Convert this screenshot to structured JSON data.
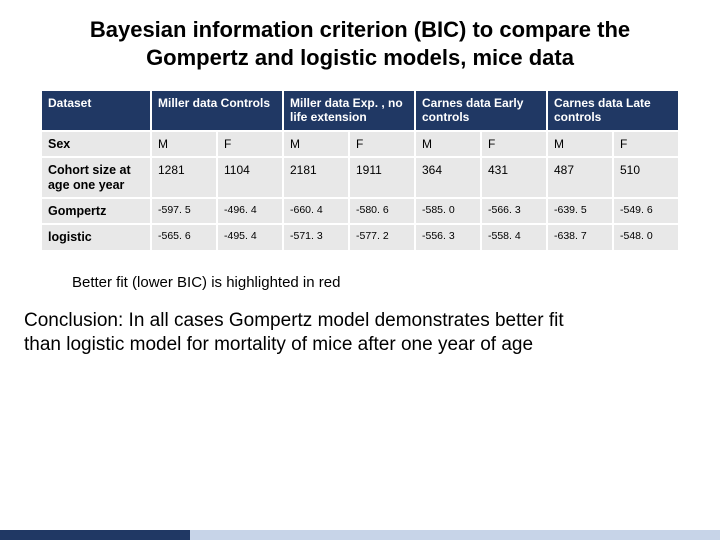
{
  "title": "Bayesian information criterion (BIC) to compare the Gompertz and logistic models, mice data",
  "table": {
    "header": {
      "dataset": "Dataset",
      "groups": [
        "Miller data Controls",
        "Miller data Exp. , no life extension",
        "Carnes data Early controls",
        "Carnes data Late controls"
      ]
    },
    "rows": {
      "sex": {
        "label": "Sex",
        "values": [
          "M",
          "F",
          "M",
          "F",
          "M",
          "F",
          "M",
          "F"
        ]
      },
      "cohort": {
        "label": "Cohort size at age one year",
        "values": [
          "1281",
          "1104",
          "2181",
          "1911",
          "364",
          "431",
          "487",
          "510"
        ]
      },
      "gompertz": {
        "label": "Gompertz",
        "values": [
          "-597. 5",
          "-496. 4",
          "-660. 4",
          "-580. 6",
          "-585. 0",
          "-566. 3",
          "-639. 5",
          "-549. 6"
        ],
        "red": [
          true,
          true,
          true,
          true,
          true,
          true,
          true,
          true
        ]
      },
      "logistic": {
        "label": "logistic",
        "values": [
          "-565. 6",
          "-495. 4",
          "-571. 3",
          "-577. 2",
          "-556. 3",
          "-558. 4",
          "-638. 7",
          "-548. 0"
        ],
        "red": [
          false,
          false,
          false,
          false,
          false,
          false,
          false,
          false
        ]
      }
    }
  },
  "note": "Better fit (lower BIC) is highlighted in red",
  "conclusion": "Conclusion: In all cases Gompertz model demonstrates better fit than logistic model for mortality of mice after one year of age",
  "colors": {
    "header_bg": "#203864",
    "cell_bg": "#e8e8e8",
    "highlight": "#c00000",
    "footer_light": "#c7d4e8"
  }
}
